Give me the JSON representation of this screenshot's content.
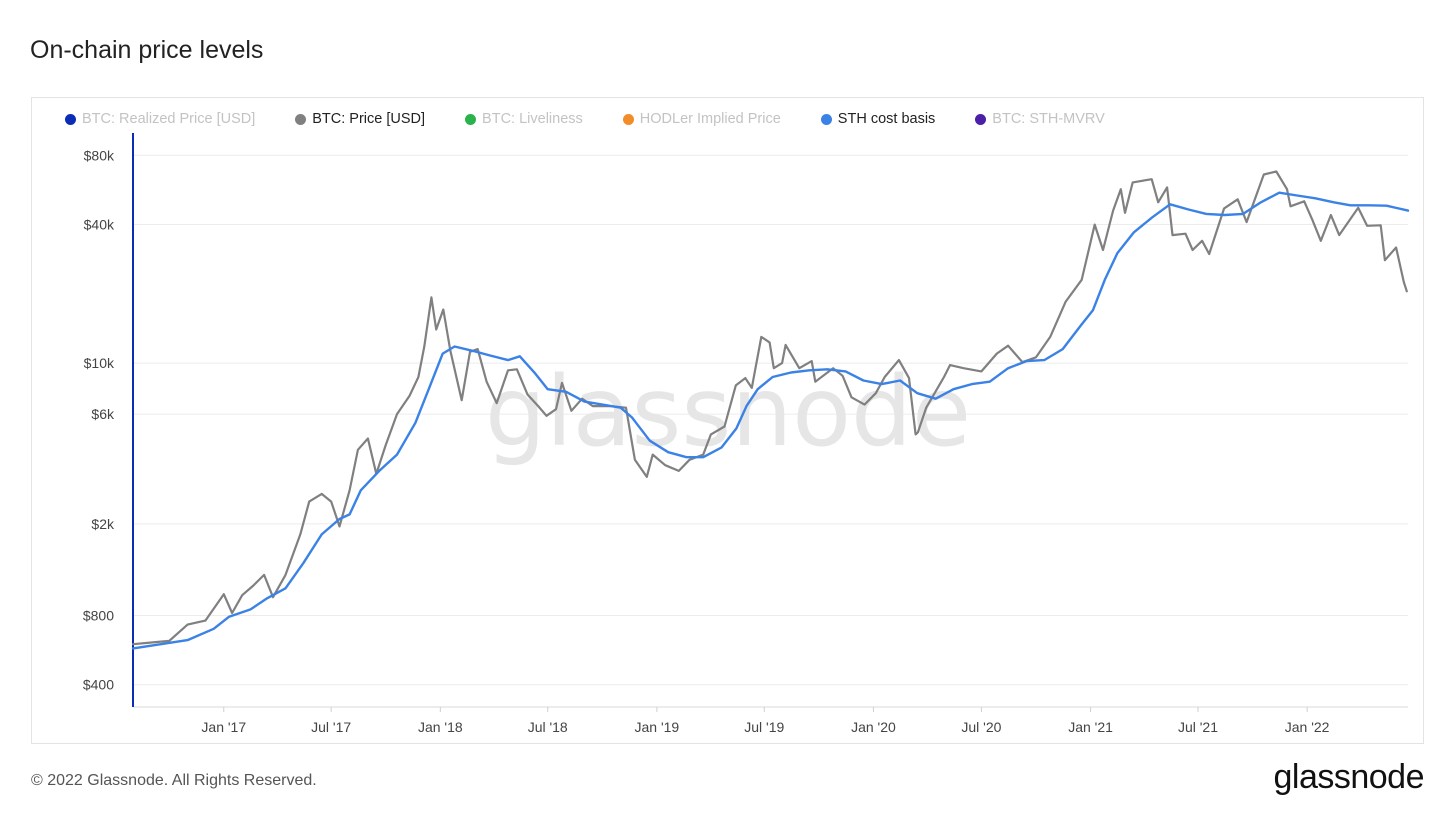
{
  "page": {
    "title": "On-chain price levels"
  },
  "legend": [
    {
      "label": "BTC: Realized Price [USD]",
      "color": "#0b2db5",
      "active": false,
      "icon": "dot"
    },
    {
      "label": "BTC: Price [USD]",
      "color": "#808080",
      "active": true,
      "icon": "dot"
    },
    {
      "label": "BTC: Liveliness",
      "color": "#2bb34b",
      "active": false,
      "icon": "dot"
    },
    {
      "label": "HODLer Implied Price",
      "color": "#f28c28",
      "active": false,
      "icon": "dot"
    },
    {
      "label": "STH cost basis",
      "color": "#3b82e6",
      "active": true,
      "icon": "dot"
    },
    {
      "label": "BTC: STH-MVRV",
      "color": "#4b1fa8",
      "active": false,
      "icon": "dot"
    }
  ],
  "watermark": "glassnode",
  "footer": {
    "copyright": "© 2022 Glassnode. All Rights Reserved.",
    "logo": "glassnode"
  },
  "chart_data": {
    "type": "line",
    "title": "On-chain price levels",
    "y_scale": "log",
    "ylim": [
      320,
      100000
    ],
    "xlim": [
      "2016-08-01",
      "2022-06-20"
    ],
    "y_ticks": [
      {
        "value": 400,
        "label": "$400"
      },
      {
        "value": 800,
        "label": "$800"
      },
      {
        "value": 2000,
        "label": "$2k"
      },
      {
        "value": 6000,
        "label": "$6k"
      },
      {
        "value": 10000,
        "label": "$10k"
      },
      {
        "value": 40000,
        "label": "$40k"
      },
      {
        "value": 80000,
        "label": "$80k"
      }
    ],
    "grid": true,
    "x_ticks": [
      {
        "date": "2017-01-01",
        "label": "Jan '17"
      },
      {
        "date": "2017-07-01",
        "label": "Jul '17"
      },
      {
        "date": "2018-01-01",
        "label": "Jan '18"
      },
      {
        "date": "2018-07-01",
        "label": "Jul '18"
      },
      {
        "date": "2019-01-01",
        "label": "Jan '19"
      },
      {
        "date": "2019-07-01",
        "label": "Jul '19"
      },
      {
        "date": "2020-01-01",
        "label": "Jan '20"
      },
      {
        "date": "2020-07-01",
        "label": "Jul '20"
      },
      {
        "date": "2021-01-01",
        "label": "Jan '21"
      },
      {
        "date": "2021-07-01",
        "label": "Jul '21"
      },
      {
        "date": "2022-01-01",
        "label": "Jan '22"
      }
    ],
    "series": [
      {
        "name": "BTC: Price [USD]",
        "color": "#808080",
        "points": [
          [
            "2016-08-01",
            600
          ],
          [
            "2016-09-01",
            610
          ],
          [
            "2016-10-01",
            620
          ],
          [
            "2016-11-01",
            730
          ],
          [
            "2016-12-01",
            760
          ],
          [
            "2017-01-01",
            990
          ],
          [
            "2017-01-15",
            820
          ],
          [
            "2017-02-01",
            980
          ],
          [
            "2017-02-20",
            1080
          ],
          [
            "2017-03-10",
            1200
          ],
          [
            "2017-03-25",
            960
          ],
          [
            "2017-04-15",
            1200
          ],
          [
            "2017-05-10",
            1800
          ],
          [
            "2017-05-25",
            2500
          ],
          [
            "2017-06-15",
            2700
          ],
          [
            "2017-07-01",
            2500
          ],
          [
            "2017-07-15",
            1950
          ],
          [
            "2017-08-01",
            2800
          ],
          [
            "2017-08-15",
            4200
          ],
          [
            "2017-09-01",
            4700
          ],
          [
            "2017-09-15",
            3300
          ],
          [
            "2017-10-01",
            4400
          ],
          [
            "2017-10-20",
            6000
          ],
          [
            "2017-11-10",
            7200
          ],
          [
            "2017-11-25",
            8700
          ],
          [
            "2017-12-05",
            11800
          ],
          [
            "2017-12-17",
            19300
          ],
          [
            "2017-12-25",
            14000
          ],
          [
            "2018-01-06",
            17100
          ],
          [
            "2018-01-18",
            11300
          ],
          [
            "2018-02-06",
            6900
          ],
          [
            "2018-02-20",
            11200
          ],
          [
            "2018-03-05",
            11500
          ],
          [
            "2018-03-20",
            8300
          ],
          [
            "2018-04-06",
            6700
          ],
          [
            "2018-04-25",
            9300
          ],
          [
            "2018-05-10",
            9400
          ],
          [
            "2018-05-28",
            7300
          ],
          [
            "2018-06-15",
            6500
          ],
          [
            "2018-06-29",
            5900
          ],
          [
            "2018-07-15",
            6300
          ],
          [
            "2018-07-25",
            8200
          ],
          [
            "2018-08-10",
            6200
          ],
          [
            "2018-08-28",
            7000
          ],
          [
            "2018-09-15",
            6500
          ],
          [
            "2018-10-15",
            6500
          ],
          [
            "2018-11-10",
            6400
          ],
          [
            "2018-11-20",
            4500
          ],
          [
            "2018-11-25",
            3800
          ],
          [
            "2018-12-15",
            3200
          ],
          [
            "2018-12-25",
            4000
          ],
          [
            "2019-01-15",
            3600
          ],
          [
            "2019-02-07",
            3400
          ],
          [
            "2019-02-25",
            3800
          ],
          [
            "2019-03-20",
            4000
          ],
          [
            "2019-04-02",
            4900
          ],
          [
            "2019-04-25",
            5300
          ],
          [
            "2019-05-14",
            8000
          ],
          [
            "2019-05-30",
            8600
          ],
          [
            "2019-06-10",
            7800
          ],
          [
            "2019-06-26",
            13000
          ],
          [
            "2019-07-10",
            12300
          ],
          [
            "2019-07-17",
            9500
          ],
          [
            "2019-07-31",
            10000
          ],
          [
            "2019-08-06",
            12000
          ],
          [
            "2019-08-29",
            9500
          ],
          [
            "2019-09-19",
            10200
          ],
          [
            "2019-09-25",
            8300
          ],
          [
            "2019-10-25",
            9500
          ],
          [
            "2019-11-10",
            8800
          ],
          [
            "2019-11-25",
            7100
          ],
          [
            "2019-12-17",
            6600
          ],
          [
            "2020-01-05",
            7400
          ],
          [
            "2020-01-20",
            8700
          ],
          [
            "2020-02-13",
            10300
          ],
          [
            "2020-03-01",
            8600
          ],
          [
            "2020-03-12",
            4900
          ],
          [
            "2020-03-16",
            5000
          ],
          [
            "2020-03-30",
            6400
          ],
          [
            "2020-04-29",
            8700
          ],
          [
            "2020-05-09",
            9800
          ],
          [
            "2020-06-01",
            9500
          ],
          [
            "2020-07-01",
            9200
          ],
          [
            "2020-07-27",
            11000
          ],
          [
            "2020-08-15",
            11900
          ],
          [
            "2020-09-08",
            10100
          ],
          [
            "2020-10-01",
            10600
          ],
          [
            "2020-10-25",
            13000
          ],
          [
            "2020-11-20",
            18500
          ],
          [
            "2020-12-17",
            23000
          ],
          [
            "2021-01-08",
            40000
          ],
          [
            "2021-01-22",
            31000
          ],
          [
            "2021-02-08",
            46000
          ],
          [
            "2021-02-21",
            57000
          ],
          [
            "2021-02-28",
            45000
          ],
          [
            "2021-03-13",
            61000
          ],
          [
            "2021-04-14",
            63000
          ],
          [
            "2021-04-25",
            50000
          ],
          [
            "2021-05-10",
            58000
          ],
          [
            "2021-05-19",
            36000
          ],
          [
            "2021-06-10",
            36500
          ],
          [
            "2021-06-22",
            31000
          ],
          [
            "2021-07-08",
            34000
          ],
          [
            "2021-07-20",
            29800
          ],
          [
            "2021-08-14",
            47000
          ],
          [
            "2021-09-06",
            51500
          ],
          [
            "2021-09-21",
            41000
          ],
          [
            "2021-10-20",
            66000
          ],
          [
            "2021-11-10",
            68000
          ],
          [
            "2021-11-28",
            57000
          ],
          [
            "2021-12-04",
            48000
          ],
          [
            "2021-12-27",
            50500
          ],
          [
            "2022-01-10",
            41800
          ],
          [
            "2022-01-24",
            34000
          ],
          [
            "2022-02-10",
            44000
          ],
          [
            "2022-02-24",
            36000
          ],
          [
            "2022-03-28",
            47300
          ],
          [
            "2022-04-12",
            39500
          ],
          [
            "2022-05-05",
            39700
          ],
          [
            "2022-05-12",
            28000
          ],
          [
            "2022-05-31",
            31800
          ],
          [
            "2022-06-13",
            22500
          ],
          [
            "2022-06-18",
            20500
          ]
        ]
      },
      {
        "name": "STH cost basis",
        "color": "#3b82e6",
        "points": [
          [
            "2016-08-01",
            575
          ],
          [
            "2016-11-01",
            625
          ],
          [
            "2016-12-15",
            700
          ],
          [
            "2017-01-10",
            790
          ],
          [
            "2017-02-15",
            850
          ],
          [
            "2017-03-15",
            950
          ],
          [
            "2017-04-15",
            1050
          ],
          [
            "2017-05-15",
            1350
          ],
          [
            "2017-06-15",
            1800
          ],
          [
            "2017-07-15",
            2100
          ],
          [
            "2017-08-01",
            2200
          ],
          [
            "2017-08-20",
            2800
          ],
          [
            "2017-09-20",
            3400
          ],
          [
            "2017-10-20",
            4000
          ],
          [
            "2017-11-20",
            5500
          ],
          [
            "2017-12-15",
            8000
          ],
          [
            "2018-01-05",
            11000
          ],
          [
            "2018-01-25",
            11800
          ],
          [
            "2018-02-25",
            11300
          ],
          [
            "2018-03-25",
            10800
          ],
          [
            "2018-04-25",
            10300
          ],
          [
            "2018-05-15",
            10700
          ],
          [
            "2018-06-10",
            9000
          ],
          [
            "2018-07-01",
            7700
          ],
          [
            "2018-08-01",
            7500
          ],
          [
            "2018-09-01",
            6800
          ],
          [
            "2018-10-01",
            6600
          ],
          [
            "2018-11-01",
            6400
          ],
          [
            "2018-11-20",
            5800
          ],
          [
            "2018-12-20",
            4600
          ],
          [
            "2019-01-20",
            4100
          ],
          [
            "2019-02-20",
            3900
          ],
          [
            "2019-03-20",
            3900
          ],
          [
            "2019-04-20",
            4300
          ],
          [
            "2019-05-15",
            5200
          ],
          [
            "2019-06-01",
            6500
          ],
          [
            "2019-06-20",
            7700
          ],
          [
            "2019-07-15",
            8700
          ],
          [
            "2019-08-15",
            9100
          ],
          [
            "2019-09-15",
            9300
          ],
          [
            "2019-10-15",
            9400
          ],
          [
            "2019-11-15",
            9200
          ],
          [
            "2019-12-15",
            8400
          ],
          [
            "2020-01-15",
            8100
          ],
          [
            "2020-02-15",
            8400
          ],
          [
            "2020-03-15",
            7400
          ],
          [
            "2020-04-15",
            7000
          ],
          [
            "2020-05-15",
            7700
          ],
          [
            "2020-06-15",
            8100
          ],
          [
            "2020-07-15",
            8300
          ],
          [
            "2020-08-15",
            9500
          ],
          [
            "2020-09-15",
            10200
          ],
          [
            "2020-10-15",
            10300
          ],
          [
            "2020-11-15",
            11500
          ],
          [
            "2020-12-15",
            14500
          ],
          [
            "2021-01-05",
            17000
          ],
          [
            "2021-01-25",
            23000
          ],
          [
            "2021-02-15",
            30000
          ],
          [
            "2021-03-15",
            37000
          ],
          [
            "2021-04-15",
            43000
          ],
          [
            "2021-05-15",
            49000
          ],
          [
            "2021-06-15",
            46500
          ],
          [
            "2021-07-15",
            44500
          ],
          [
            "2021-08-15",
            44000
          ],
          [
            "2021-09-15",
            44500
          ],
          [
            "2021-10-15",
            50000
          ],
          [
            "2021-11-15",
            55000
          ],
          [
            "2021-12-15",
            53500
          ],
          [
            "2022-01-15",
            52000
          ],
          [
            "2022-02-15",
            50000
          ],
          [
            "2022-03-15",
            48500
          ],
          [
            "2022-04-15",
            48500
          ],
          [
            "2022-05-15",
            48300
          ],
          [
            "2022-06-20",
            46000
          ]
        ]
      }
    ]
  }
}
